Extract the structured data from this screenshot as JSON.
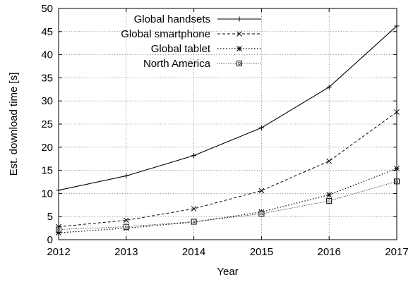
{
  "chart_data": {
    "type": "line",
    "xlabel": "Year",
    "ylabel": "Est. download time [s]",
    "x": [
      2012,
      2013,
      2014,
      2015,
      2016,
      2017
    ],
    "xlim": [
      2012,
      2017
    ],
    "ylim": [
      0,
      50
    ],
    "xticks": [
      2012,
      2013,
      2014,
      2015,
      2016,
      2017
    ],
    "yticks": [
      0,
      5,
      10,
      15,
      20,
      25,
      30,
      35,
      40,
      45,
      50
    ],
    "grid": true,
    "legend_position": "top-left",
    "series": [
      {
        "name": "Global handsets",
        "marker": "plus",
        "dash": "solid",
        "values": [
          10.7,
          13.8,
          18.2,
          24.2,
          33.0,
          46.2
        ]
      },
      {
        "name": "Global smartphone",
        "marker": "cross",
        "dash": "dashed",
        "values": [
          2.8,
          4.2,
          6.7,
          10.6,
          17.0,
          27.6
        ]
      },
      {
        "name": "Global tablet",
        "marker": "star",
        "dash": "dotted",
        "values": [
          1.5,
          2.5,
          3.8,
          6.0,
          9.7,
          15.4
        ]
      },
      {
        "name": "North America",
        "marker": "square",
        "dash": "fine",
        "values": [
          2.2,
          2.8,
          3.9,
          5.6,
          8.4,
          12.6
        ]
      }
    ]
  }
}
